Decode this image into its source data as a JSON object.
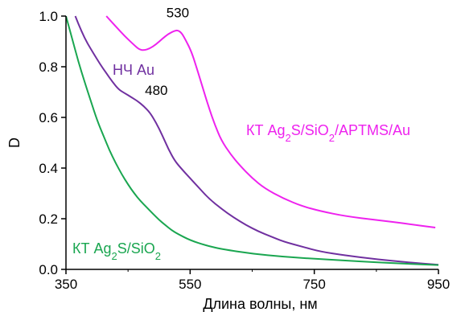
{
  "chart_data": {
    "type": "line",
    "title": "",
    "xlabel": "Длина волны, нм",
    "ylabel": "D",
    "xlim": [
      350,
      950
    ],
    "ylim": [
      0,
      1.0
    ],
    "x_ticks": [
      "350",
      "550",
      "750",
      "950"
    ],
    "y_ticks": [
      "0.0",
      "0.2",
      "0.4",
      "0.6",
      "0.8",
      "1.0"
    ],
    "grid": false,
    "series": [
      {
        "name": "КТ Ag2S/SiO2/APTMS/Au",
        "label_parts": [
          [
            "КТ Ag",
            ""
          ],
          [
            "2",
            "sub"
          ],
          [
            "S/SiO",
            ""
          ],
          [
            "2",
            "sub"
          ],
          [
            "/APTMS/Au",
            ""
          ]
        ],
        "color": "#ee22ee",
        "points": [
          [
            415,
            1.0
          ],
          [
            430,
            0.96
          ],
          [
            445,
            0.92
          ],
          [
            460,
            0.885
          ],
          [
            468,
            0.868
          ],
          [
            476,
            0.865
          ],
          [
            485,
            0.872
          ],
          [
            495,
            0.888
          ],
          [
            505,
            0.91
          ],
          [
            515,
            0.93
          ],
          [
            525,
            0.942
          ],
          [
            530,
            0.944
          ],
          [
            536,
            0.935
          ],
          [
            543,
            0.905
          ],
          [
            552,
            0.86
          ],
          [
            560,
            0.8
          ],
          [
            570,
            0.72
          ],
          [
            580,
            0.64
          ],
          [
            590,
            0.57
          ],
          [
            600,
            0.51
          ],
          [
            615,
            0.455
          ],
          [
            630,
            0.41
          ],
          [
            650,
            0.36
          ],
          [
            670,
            0.32
          ],
          [
            700,
            0.28
          ],
          [
            730,
            0.25
          ],
          [
            760,
            0.23
          ],
          [
            800,
            0.21
          ],
          [
            850,
            0.195
          ],
          [
            900,
            0.18
          ],
          [
            945,
            0.165
          ]
        ]
      },
      {
        "name": "НЧ Au",
        "label_parts": [
          [
            "НЧ Au",
            ""
          ]
        ],
        "color": "#7030a0",
        "points": [
          [
            365,
            1.0
          ],
          [
            375,
            0.94
          ],
          [
            385,
            0.89
          ],
          [
            395,
            0.85
          ],
          [
            405,
            0.81
          ],
          [
            415,
            0.775
          ],
          [
            425,
            0.74
          ],
          [
            435,
            0.71
          ],
          [
            445,
            0.695
          ],
          [
            455,
            0.68
          ],
          [
            465,
            0.665
          ],
          [
            475,
            0.645
          ],
          [
            485,
            0.62
          ],
          [
            495,
            0.58
          ],
          [
            505,
            0.53
          ],
          [
            515,
            0.475
          ],
          [
            525,
            0.43
          ],
          [
            535,
            0.4
          ],
          [
            550,
            0.36
          ],
          [
            565,
            0.32
          ],
          [
            580,
            0.28
          ],
          [
            600,
            0.24
          ],
          [
            620,
            0.205
          ],
          [
            640,
            0.175
          ],
          [
            660,
            0.15
          ],
          [
            680,
            0.13
          ],
          [
            700,
            0.11
          ],
          [
            730,
            0.09
          ],
          [
            760,
            0.07
          ],
          [
            800,
            0.055
          ],
          [
            850,
            0.04
          ],
          [
            900,
            0.028
          ],
          [
            950,
            0.018
          ]
        ]
      },
      {
        "name": "КТ Ag2S/SiO2",
        "label_parts": [
          [
            "КТ Ag",
            ""
          ],
          [
            "2",
            "sub"
          ],
          [
            "S/SiO",
            ""
          ],
          [
            "2",
            "sub"
          ]
        ],
        "color": "#1aa650",
        "points": [
          [
            350,
            1.0
          ],
          [
            360,
            0.91
          ],
          [
            370,
            0.82
          ],
          [
            380,
            0.74
          ],
          [
            390,
            0.665
          ],
          [
            400,
            0.59
          ],
          [
            410,
            0.53
          ],
          [
            420,
            0.47
          ],
          [
            430,
            0.42
          ],
          [
            440,
            0.375
          ],
          [
            450,
            0.335
          ],
          [
            460,
            0.3
          ],
          [
            470,
            0.27
          ],
          [
            480,
            0.245
          ],
          [
            490,
            0.22
          ],
          [
            500,
            0.195
          ],
          [
            510,
            0.175
          ],
          [
            520,
            0.155
          ],
          [
            530,
            0.14
          ],
          [
            550,
            0.115
          ],
          [
            575,
            0.095
          ],
          [
            600,
            0.08
          ],
          [
            650,
            0.062
          ],
          [
            700,
            0.05
          ],
          [
            750,
            0.042
          ],
          [
            800,
            0.035
          ],
          [
            850,
            0.028
          ],
          [
            900,
            0.022
          ],
          [
            950,
            0.017
          ]
        ]
      }
    ],
    "annotations": [
      {
        "text": "530",
        "x": 530,
        "y": 0.944
      },
      {
        "text": "480",
        "x": 480,
        "y": 0.645
      }
    ]
  }
}
